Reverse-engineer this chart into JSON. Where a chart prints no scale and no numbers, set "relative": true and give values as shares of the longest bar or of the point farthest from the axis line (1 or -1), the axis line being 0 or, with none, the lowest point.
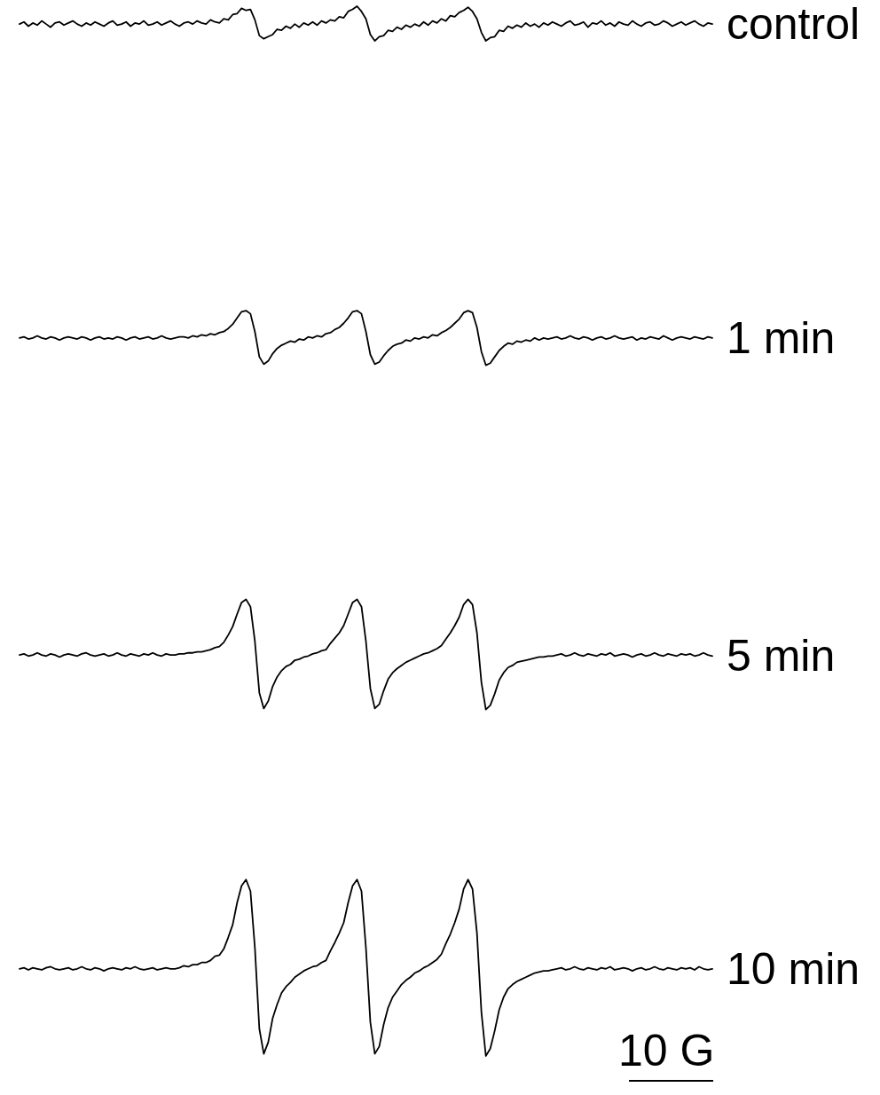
{
  "chart_data": {
    "type": "line",
    "relative": true,
    "categories": [
      null,
      null,
      null,
      null,
      null,
      null,
      null,
      null,
      null,
      null,
      null,
      null,
      null,
      null,
      null,
      null,
      null,
      null,
      null,
      null,
      null,
      null,
      null,
      null,
      null,
      null,
      null,
      null,
      null,
      null,
      null,
      null,
      null,
      null,
      null,
      null,
      null,
      null,
      null,
      null,
      null,
      null,
      null,
      null,
      null,
      null,
      null,
      null,
      null,
      null,
      null,
      null,
      null,
      null,
      null,
      null,
      null,
      null,
      null,
      null,
      null,
      null,
      null,
      null,
      null,
      null,
      null,
      null,
      null,
      null,
      null,
      null,
      null,
      null,
      null,
      null,
      null,
      null,
      null,
      null,
      null,
      null,
      null,
      null,
      null,
      null,
      null,
      null,
      null,
      null,
      null,
      null,
      null,
      null,
      null,
      null,
      null,
      null,
      null,
      null,
      null,
      null,
      null,
      null,
      null,
      null,
      null,
      null,
      null,
      null,
      null,
      null,
      null,
      null,
      null,
      null,
      null,
      null,
      null,
      null,
      null,
      null,
      null,
      null,
      null,
      null,
      null,
      null,
      null,
      null,
      null,
      null,
      null,
      null,
      null,
      null,
      null,
      null,
      null,
      null,
      null,
      null,
      null,
      null,
      null,
      null,
      null,
      null,
      null,
      null,
      null,
      null,
      null,
      null,
      null,
      null,
      null
    ],
    "series": [
      {
        "name": "control",
        "color": "#000000",
        "values": [
          0.983,
          0.985,
          0.981,
          0.984,
          0.982,
          0.986,
          0.983,
          0.98,
          0.984,
          0.985,
          0.982,
          0.984,
          0.986,
          0.983,
          0.981,
          0.984,
          0.982,
          0.985,
          0.983,
          0.981,
          0.984,
          0.986,
          0.982,
          0.983,
          0.985,
          0.981,
          0.984,
          0.983,
          0.986,
          0.982,
          0.983,
          0.985,
          0.982,
          0.984,
          0.986,
          0.983,
          0.981,
          0.984,
          0.985,
          0.983,
          0.986,
          0.984,
          0.983,
          0.987,
          0.985,
          0.984,
          0.988,
          0.987,
          0.992,
          0.993,
          0.998,
          0.996,
          0.997,
          0.987,
          0.972,
          0.969,
          0.971,
          0.973,
          0.978,
          0.977,
          0.981,
          0.979,
          0.983,
          0.98,
          0.984,
          0.982,
          0.985,
          0.982,
          0.986,
          0.984,
          0.987,
          0.986,
          0.99,
          0.989,
          0.995,
          0.997,
          1,
          0.995,
          0.988,
          0.973,
          0.967,
          0.971,
          0.972,
          0.977,
          0.976,
          0.98,
          0.978,
          0.982,
          0.98,
          0.983,
          0.981,
          0.985,
          0.982,
          0.986,
          0.984,
          0.988,
          0.986,
          0.991,
          0.99,
          0.994,
          0.996,
          0.999,
          0.995,
          0.988,
          0.975,
          0.967,
          0.97,
          0.971,
          0.977,
          0.976,
          0.981,
          0.979,
          0.982,
          0.98,
          0.984,
          0.981,
          0.983,
          0.98,
          0.984,
          0.982,
          0.985,
          0.983,
          0.981,
          0.984,
          0.986,
          0.982,
          0.983,
          0.985,
          0.98,
          0.984,
          0.983,
          0.986,
          0.982,
          0.984,
          0.981,
          0.985,
          0.983,
          0.982,
          0.986,
          0.983,
          0.981,
          0.984,
          0.985,
          0.982,
          0.983,
          0.986,
          0.984,
          0.981,
          0.983,
          0.985,
          0.982,
          0.984,
          0.986,
          0.983,
          0.981,
          0.984,
          0.983
        ]
      },
      {
        "name": "1 min",
        "color": "#000000",
        "values": [
          0.684,
          0.685,
          0.683,
          0.684,
          0.686,
          0.684,
          0.683,
          0.685,
          0.684,
          0.682,
          0.684,
          0.685,
          0.684,
          0.683,
          0.685,
          0.684,
          0.682,
          0.684,
          0.685,
          0.683,
          0.684,
          0.683,
          0.685,
          0.684,
          0.682,
          0.684,
          0.685,
          0.683,
          0.684,
          0.685,
          0.683,
          0.684,
          0.686,
          0.684,
          0.683,
          0.684,
          0.685,
          0.685,
          0.684,
          0.686,
          0.685,
          0.687,
          0.686,
          0.688,
          0.687,
          0.689,
          0.69,
          0.693,
          0.697,
          0.703,
          0.709,
          0.71,
          0.707,
          0.69,
          0.666,
          0.659,
          0.662,
          0.669,
          0.674,
          0.677,
          0.679,
          0.681,
          0.68,
          0.683,
          0.682,
          0.685,
          0.684,
          0.686,
          0.685,
          0.688,
          0.689,
          0.692,
          0.694,
          0.698,
          0.703,
          0.709,
          0.71,
          0.707,
          0.69,
          0.668,
          0.659,
          0.661,
          0.667,
          0.672,
          0.676,
          0.678,
          0.679,
          0.682,
          0.681,
          0.684,
          0.683,
          0.685,
          0.684,
          0.687,
          0.686,
          0.689,
          0.691,
          0.694,
          0.698,
          0.702,
          0.708,
          0.71,
          0.708,
          0.694,
          0.671,
          0.658,
          0.66,
          0.666,
          0.672,
          0.676,
          0.679,
          0.678,
          0.681,
          0.68,
          0.682,
          0.681,
          0.684,
          0.682,
          0.684,
          0.683,
          0.684,
          0.685,
          0.683,
          0.684,
          0.686,
          0.684,
          0.683,
          0.685,
          0.684,
          0.682,
          0.684,
          0.685,
          0.683,
          0.684,
          0.686,
          0.684,
          0.683,
          0.684,
          0.685,
          0.682,
          0.684,
          0.683,
          0.685,
          0.684,
          0.683,
          0.686,
          0.684,
          0.682,
          0.684,
          0.685,
          0.684,
          0.683,
          0.685,
          0.684,
          0.683,
          0.685,
          0.684
        ]
      },
      {
        "name": "5 min",
        "color": "#000000",
        "values": [
          0.382,
          0.383,
          0.381,
          0.382,
          0.384,
          0.382,
          0.381,
          0.383,
          0.382,
          0.38,
          0.382,
          0.383,
          0.382,
          0.381,
          0.383,
          0.384,
          0.382,
          0.381,
          0.382,
          0.383,
          0.381,
          0.382,
          0.384,
          0.382,
          0.381,
          0.383,
          0.382,
          0.381,
          0.383,
          0.382,
          0.384,
          0.382,
          0.381,
          0.383,
          0.382,
          0.382,
          0.383,
          0.383,
          0.384,
          0.384,
          0.385,
          0.385,
          0.386,
          0.387,
          0.389,
          0.39,
          0.394,
          0.401,
          0.409,
          0.421,
          0.432,
          0.435,
          0.428,
          0.395,
          0.346,
          0.331,
          0.338,
          0.352,
          0.361,
          0.367,
          0.371,
          0.373,
          0.377,
          0.378,
          0.38,
          0.381,
          0.383,
          0.384,
          0.386,
          0.387,
          0.393,
          0.398,
          0.403,
          0.41,
          0.421,
          0.432,
          0.435,
          0.428,
          0.395,
          0.35,
          0.331,
          0.335,
          0.348,
          0.359,
          0.365,
          0.369,
          0.372,
          0.375,
          0.377,
          0.379,
          0.381,
          0.383,
          0.384,
          0.386,
          0.388,
          0.391,
          0.397,
          0.403,
          0.41,
          0.418,
          0.43,
          0.435,
          0.43,
          0.403,
          0.356,
          0.33,
          0.334,
          0.345,
          0.358,
          0.365,
          0.37,
          0.372,
          0.375,
          0.376,
          0.377,
          0.378,
          0.379,
          0.38,
          0.38,
          0.381,
          0.381,
          0.382,
          0.383,
          0.381,
          0.382,
          0.384,
          0.382,
          0.381,
          0.383,
          0.382,
          0.381,
          0.383,
          0.382,
          0.384,
          0.381,
          0.382,
          0.383,
          0.382,
          0.38,
          0.382,
          0.383,
          0.381,
          0.382,
          0.384,
          0.382,
          0.381,
          0.383,
          0.382,
          0.381,
          0.383,
          0.382,
          0.383,
          0.381,
          0.382,
          0.384,
          0.382,
          0.381
        ]
      },
      {
        "name": "10 min",
        "color": "#000000",
        "values": [
          0.083,
          0.084,
          0.082,
          0.084,
          0.083,
          0.082,
          0.084,
          0.085,
          0.083,
          0.082,
          0.083,
          0.084,
          0.082,
          0.083,
          0.085,
          0.083,
          0.082,
          0.084,
          0.083,
          0.081,
          0.083,
          0.084,
          0.083,
          0.082,
          0.084,
          0.083,
          0.085,
          0.083,
          0.082,
          0.083,
          0.084,
          0.082,
          0.083,
          0.084,
          0.083,
          0.083,
          0.084,
          0.086,
          0.085,
          0.087,
          0.087,
          0.089,
          0.089,
          0.091,
          0.095,
          0.096,
          0.102,
          0.113,
          0.125,
          0.146,
          0.162,
          0.168,
          0.157,
          0.103,
          0.026,
          0.002,
          0.013,
          0.036,
          0.049,
          0.06,
          0.066,
          0.07,
          0.075,
          0.078,
          0.081,
          0.083,
          0.085,
          0.086,
          0.089,
          0.091,
          0.1,
          0.108,
          0.117,
          0.127,
          0.146,
          0.162,
          0.168,
          0.157,
          0.103,
          0.032,
          0.002,
          0.009,
          0.03,
          0.046,
          0.056,
          0.062,
          0.068,
          0.072,
          0.075,
          0.079,
          0.081,
          0.084,
          0.086,
          0.089,
          0.092,
          0.097,
          0.107,
          0.116,
          0.127,
          0.14,
          0.159,
          0.168,
          0.159,
          0.117,
          0.042,
          0,
          0.007,
          0.024,
          0.044,
          0.056,
          0.064,
          0.068,
          0.071,
          0.073,
          0.075,
          0.077,
          0.079,
          0.08,
          0.081,
          0.081,
          0.082,
          0.083,
          0.084,
          0.082,
          0.083,
          0.085,
          0.083,
          0.082,
          0.084,
          0.083,
          0.082,
          0.084,
          0.083,
          0.085,
          0.082,
          0.083,
          0.084,
          0.083,
          0.081,
          0.083,
          0.084,
          0.082,
          0.083,
          0.085,
          0.083,
          0.082,
          0.084,
          0.083,
          0.082,
          0.084,
          0.083,
          0.084,
          0.082,
          0.085,
          0.083,
          0.082,
          0.083
        ]
      }
    ],
    "annotations": [
      "10 G"
    ]
  }
}
